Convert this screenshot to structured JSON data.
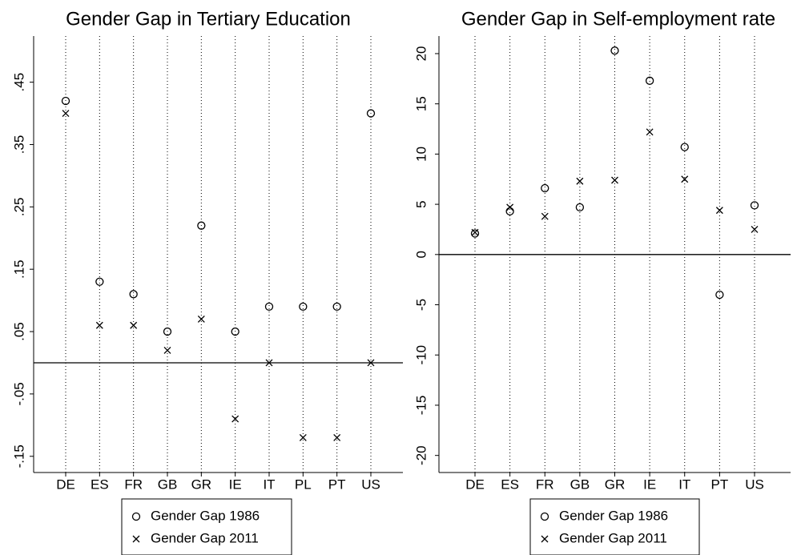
{
  "chart_data": [
    {
      "type": "scatter",
      "title": "Gender Gap in Tertiary Education",
      "categories": [
        "DE",
        "ES",
        "FR",
        "GB",
        "GR",
        "IE",
        "IT",
        "PL",
        "PT",
        "US"
      ],
      "series": [
        {
          "name": "Gender Gap 1986",
          "color": "#000000",
          "marker": "circle",
          "values": [
            0.42,
            0.13,
            0.11,
            0.05,
            0.22,
            0.05,
            0.09,
            0.09,
            0.09,
            0.4
          ]
        },
        {
          "name": "Gender Gap 2011",
          "color": "#000000",
          "marker": "x",
          "values": [
            0.4,
            0.06,
            0.06,
            0.02,
            0.07,
            -0.09,
            0,
            -0.12,
            -0.12,
            0
          ]
        }
      ],
      "ylim": [
        -0.176,
        0.524
      ],
      "yticks": [
        {
          "value": -0.15,
          "label": "-.15"
        },
        {
          "value": -0.05,
          "label": "-.05"
        },
        {
          "value": 0.05,
          "label": ".05"
        },
        {
          "value": 0.15,
          "label": ".15"
        },
        {
          "value": 0.25,
          "label": ".25"
        },
        {
          "value": 0.35,
          "label": ".35"
        },
        {
          "value": 0.45,
          "label": ".45"
        }
      ],
      "reference_line": 0,
      "grid": "dotted-vertical"
    },
    {
      "type": "scatter",
      "title": "Gender Gap in Self-employment rate",
      "categories": [
        "DE",
        "ES",
        "FR",
        "GB",
        "GR",
        "IE",
        "IT",
        "PT",
        "US"
      ],
      "series": [
        {
          "name": "Gender Gap 1986",
          "color": "#000000",
          "marker": "circle",
          "values": [
            2.1,
            4.3,
            6.6,
            4.7,
            20.3,
            17.3,
            10.7,
            -4.0,
            4.9
          ]
        },
        {
          "name": "Gender Gap 2011",
          "color": "#000000",
          "marker": "x",
          "values": [
            2.2,
            4.7,
            3.8,
            7.3,
            7.4,
            12.2,
            7.5,
            4.4,
            2.5
          ]
        }
      ],
      "ylim": [
        -21.7,
        21.75
      ],
      "yticks": [
        -20,
        -15,
        -10,
        -5,
        0,
        5,
        10,
        15,
        20
      ],
      "reference_line": 0,
      "grid": "dotted-vertical"
    }
  ]
}
